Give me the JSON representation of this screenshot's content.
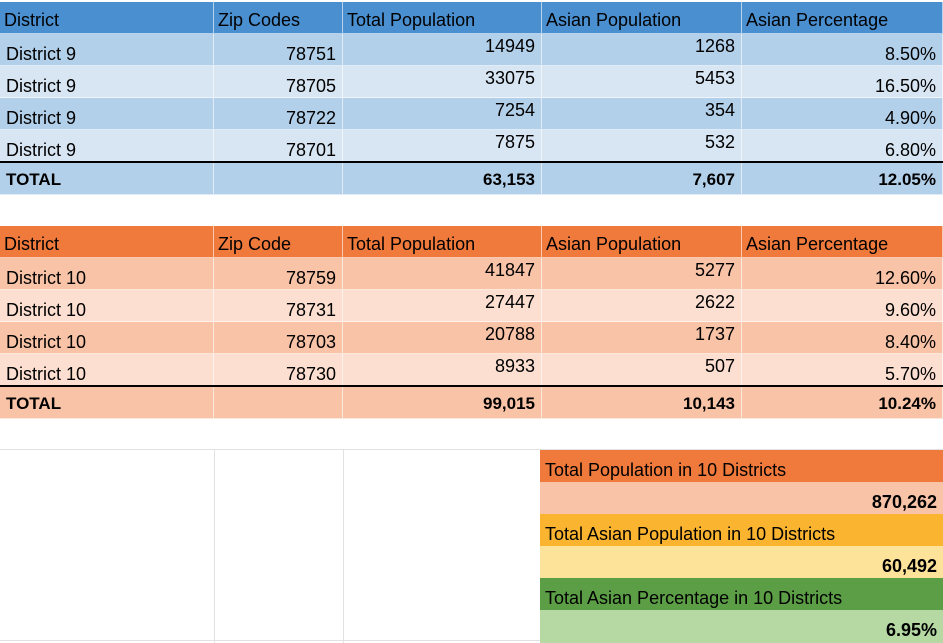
{
  "table1": {
    "headers": [
      "District",
      "Zip Codes",
      "Total Population",
      "Asian Population",
      "Asian Percentage"
    ],
    "rows": [
      [
        "District 9",
        "78751",
        "14949",
        "1268",
        "8.50%"
      ],
      [
        "District 9",
        "78705",
        "33075",
        "5453",
        "16.50%"
      ],
      [
        "District 9",
        "78722",
        "7254",
        "354",
        "4.90%"
      ],
      [
        "District 9",
        "78701",
        "7875",
        "532",
        "6.80%"
      ]
    ],
    "total": [
      "TOTAL",
      "",
      "63,153",
      "7,607",
      "12.05%"
    ],
    "colors": {
      "header": "#4a8fd0",
      "row_a": "#b3d0ea",
      "row_b": "#d8e6f4"
    }
  },
  "table2": {
    "headers": [
      "District",
      "Zip Code",
      "Total Population",
      "Asian Population",
      "Asian Percentage"
    ],
    "rows": [
      [
        "District 10",
        "78759",
        "41847",
        "5277",
        "12.60%"
      ],
      [
        "District 10",
        "78731",
        "27447",
        "2622",
        "9.60%"
      ],
      [
        "District 10",
        "78703",
        "20788",
        "1737",
        "8.40%"
      ],
      [
        "District 10",
        "78730",
        "8933",
        "507",
        "5.70%"
      ]
    ],
    "total": [
      "TOTAL",
      "",
      "99,015",
      "10,143",
      "10.24%"
    ],
    "colors": {
      "header": "#f07a3c",
      "row_a": "#f8c3a6",
      "row_b": "#fddfd1"
    }
  },
  "summary": [
    {
      "label": "Total Population in 10 Districts",
      "value": "870,262"
    },
    {
      "label": "Total Asian Population in 10 Districts",
      "value": "60,492"
    },
    {
      "label": "Total Asian Percentage in 10 Districts",
      "value": "6.95%"
    }
  ]
}
